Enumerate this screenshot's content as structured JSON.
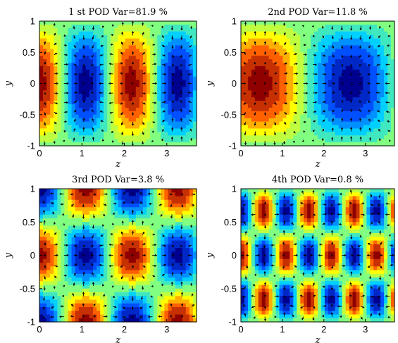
{
  "chart_data": [
    {
      "type": "heatmap",
      "title": "1 st POD Var=81.9 %",
      "xlabel": "z",
      "ylabel": "y",
      "xlim": [
        0,
        3.7
      ],
      "ylim": [
        -1,
        1
      ],
      "x_ticks": [
        "0",
        "1",
        "2",
        "3"
      ],
      "y_ticks": [
        "1",
        "0.5",
        "0",
        "-0.5",
        "-1"
      ],
      "mode": {
        "kz": 1,
        "ky": 1,
        "phase": 1.57
      }
    },
    {
      "type": "heatmap",
      "title": "2nd POD Var=11.8 %",
      "xlabel": "z",
      "ylabel": "y",
      "xlim": [
        0,
        3.7
      ],
      "ylim": [
        -1,
        1
      ],
      "x_ticks": [
        "0",
        "1",
        "2",
        "3"
      ],
      "y_ticks": [
        "1",
        "0.5",
        "0",
        "-0.5",
        "-1"
      ],
      "mode": {
        "kz": 0.5,
        "ky": 1,
        "phase": 0.9
      }
    },
    {
      "type": "heatmap",
      "title": "3rd POD Var=3.8 %",
      "xlabel": "z",
      "ylabel": "y",
      "xlim": [
        0,
        3.7
      ],
      "ylim": [
        -1,
        1
      ],
      "x_ticks": [
        "0",
        "1",
        "2",
        "3"
      ],
      "y_ticks": [
        "1",
        "0.5",
        "0",
        "-0.5",
        "-1"
      ],
      "mode": {
        "kz": 1,
        "ky": 2,
        "phase": 1.57
      }
    },
    {
      "type": "heatmap",
      "title": "4th POD Var=0.8 %",
      "xlabel": "z",
      "ylabel": "y",
      "xlim": [
        0,
        3.7
      ],
      "ylim": [
        -1,
        1
      ],
      "x_ticks": [
        "0",
        "1",
        "2",
        "3"
      ],
      "y_ticks": [
        "1",
        "0.5",
        "0",
        "-0.5",
        "-1"
      ],
      "mode": {
        "kz": 2,
        "ky": 3,
        "phase": 1.57
      }
    }
  ],
  "colors": {
    "colormap": [
      "#00008f",
      "#0050ff",
      "#00d0ff",
      "#80ff80",
      "#ffff00",
      "#ff6000",
      "#8f0000"
    ]
  }
}
